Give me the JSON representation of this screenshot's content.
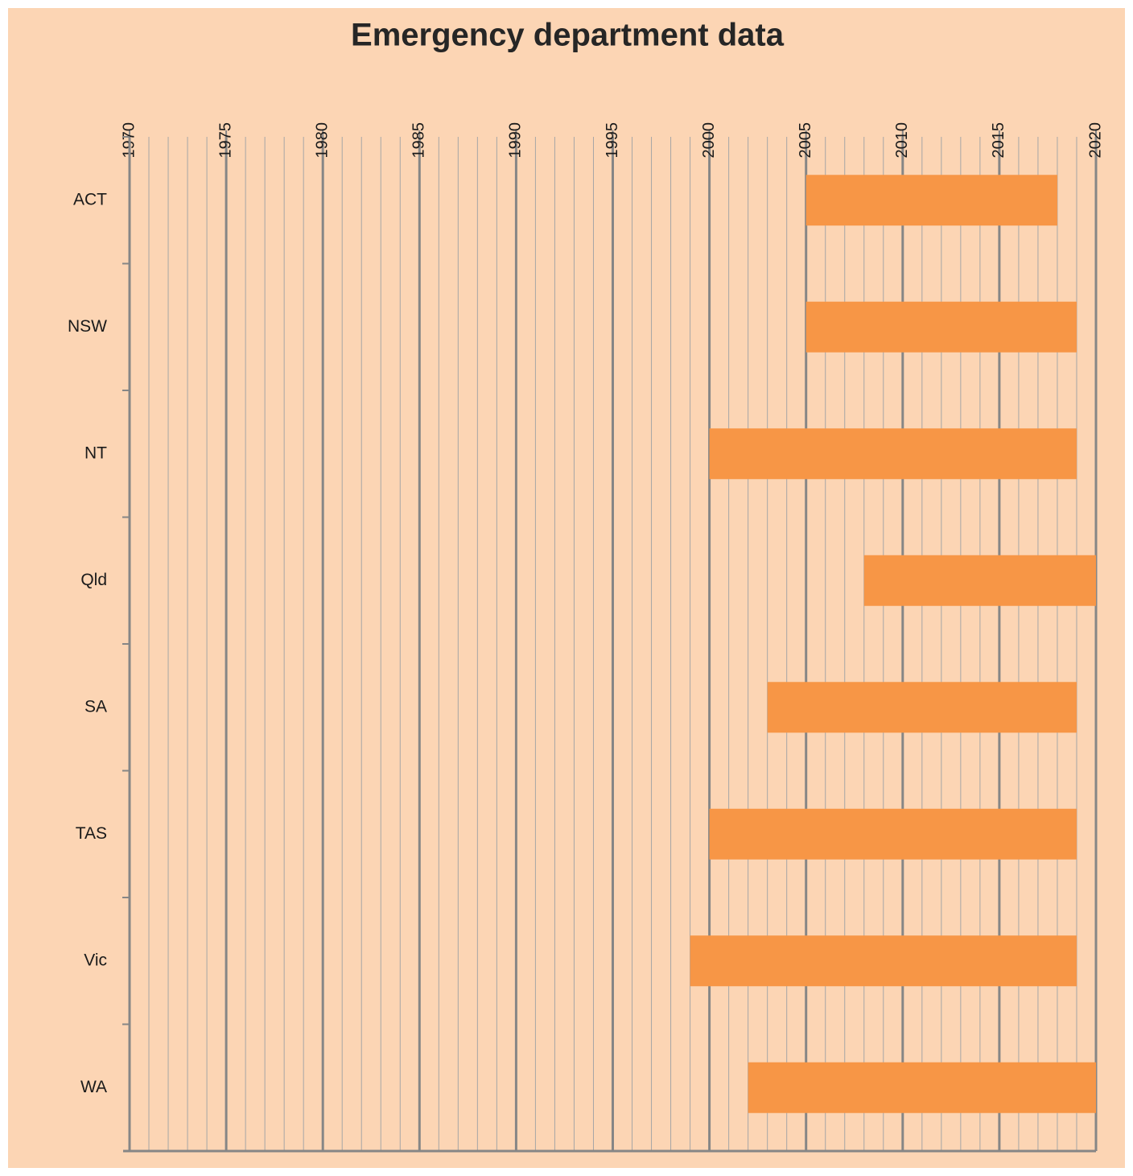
{
  "chart_data": {
    "type": "range_bar",
    "title": "Emergency department data",
    "categories": [
      "ACT",
      "NSW",
      "NT",
      "Qld",
      "SA",
      "TAS",
      "Vic",
      "WA"
    ],
    "start": [
      2005,
      2005,
      2000,
      2008,
      2003,
      2000,
      1999,
      2002
    ],
    "end": [
      2018,
      2019,
      2019,
      2020,
      2019,
      2019,
      2019,
      2020
    ],
    "color": "#f79646",
    "xlim": [
      1970,
      2020
    ],
    "xticks": [
      1970,
      1975,
      1980,
      1985,
      1990,
      1995,
      2000,
      2005,
      2010,
      2015,
      2020
    ],
    "xminor": 1,
    "grid": true
  }
}
